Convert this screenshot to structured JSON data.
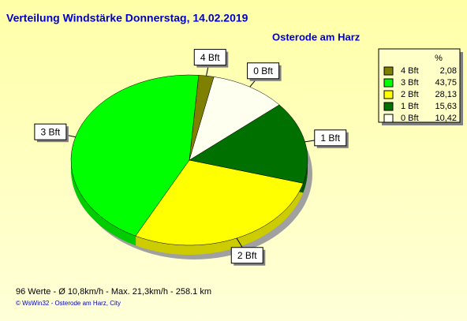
{
  "chart_data": {
    "type": "pie",
    "title": "Verteilung Windstärke  Donnerstag, 14.02.2019",
    "subtitle": "Osterode am Harz",
    "categories": [
      "4 Bft",
      "3 Bft",
      "2 Bft",
      "1 Bft",
      "0 Bft"
    ],
    "values": [
      2.08,
      43.75,
      28.13,
      15.63,
      10.42
    ],
    "value_labels": [
      "2,08",
      "43,75",
      "28,13",
      "15,63",
      "10,42"
    ],
    "colors": [
      "#808000",
      "#00ff00",
      "#ffff00",
      "#007000",
      "#fffff0"
    ],
    "legend_header": "%",
    "legend": "top-right",
    "footer": "96 Werte   -   Ø 10,8km/h  -  Max. 21,3km/h   -   258.1 km",
    "credit": "© WsWin32  -  Osterode am Harz, City"
  }
}
